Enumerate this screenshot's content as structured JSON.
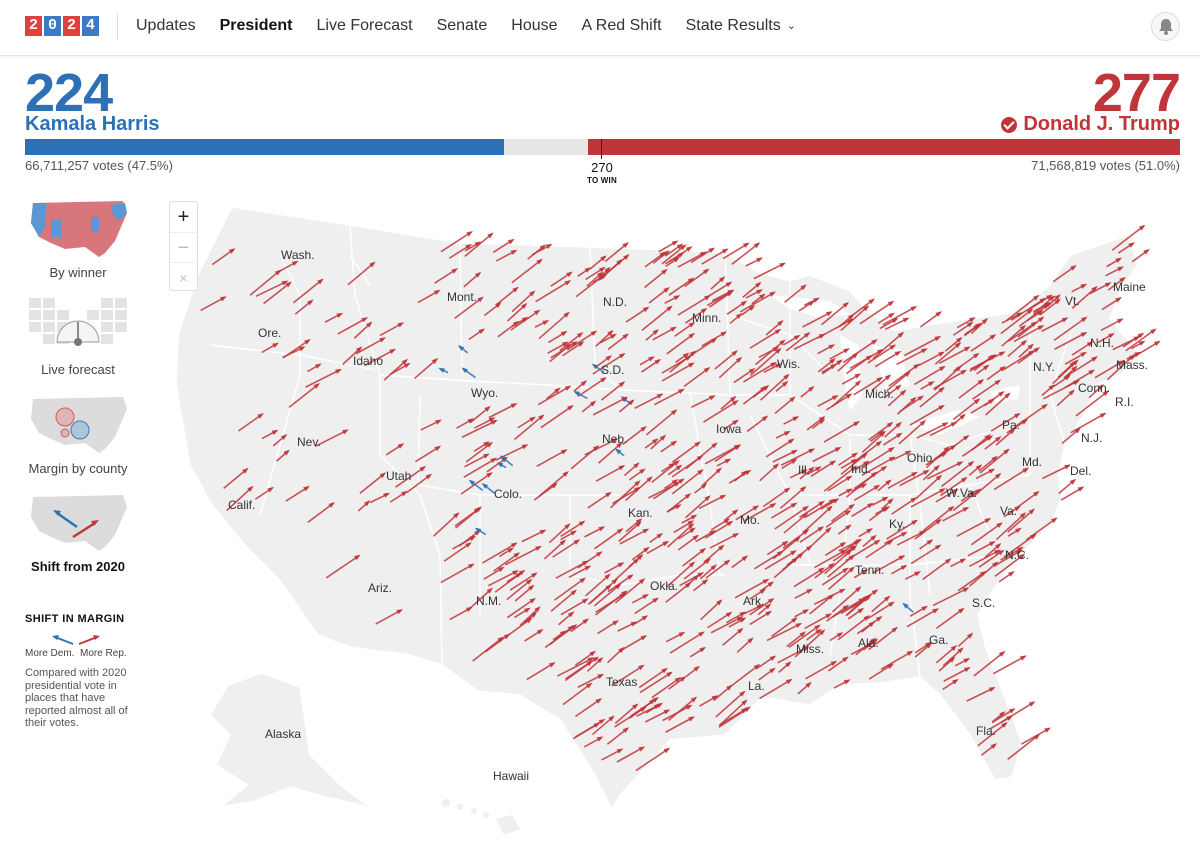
{
  "nav": {
    "logo_digits": [
      "2",
      "0",
      "2",
      "4"
    ],
    "links": [
      "Updates",
      "President",
      "Live Forecast",
      "Senate",
      "House",
      "A Red Shift",
      "State Results"
    ],
    "active": "President",
    "bell_icon": "bell-icon"
  },
  "colors": {
    "dem": "#2e70b6",
    "rep": "#c0353a",
    "land": "#efefef",
    "border": "#ffffff"
  },
  "results": {
    "dem": {
      "electoral_votes": "224",
      "name": "Kamala Harris",
      "votes": "66,711,257 votes (47.5%)",
      "ev_share": 0.415
    },
    "rep": {
      "electoral_votes": "277",
      "name": "Donald J. Trump",
      "votes": "71,568,819 votes (51.0%)",
      "ev_share": 0.513,
      "winner": true
    },
    "threshold": "270",
    "threshold_label": "TO WIN"
  },
  "map_options": [
    {
      "label": "By winner"
    },
    {
      "label": "Live forecast"
    },
    {
      "label": "Margin by county"
    },
    {
      "label": "Shift from 2020",
      "active": true
    }
  ],
  "legend": {
    "title": "SHIFT IN MARGIN",
    "dem_label": "More Dem.",
    "rep_label": "More Rep.",
    "note": "Compared with 2020 presidential vote in places that have reported almost all of their votes."
  },
  "zoom": {
    "in": "+",
    "out": "−",
    "reset": "×"
  },
  "state_labels": [
    "Wash.",
    "Mont.",
    "N.D.",
    "Minn.",
    "Vt.",
    "Maine",
    "Ore.",
    "Idaho",
    "S.D.",
    "Wis.",
    "N.H.",
    "N.Y.",
    "Mass.",
    "Wyo.",
    "Mich.",
    "Conn.",
    "R.I.",
    "Nev.",
    "Neb.",
    "Iowa",
    "Pa.",
    "N.J.",
    "Utah",
    "Ill.",
    "Ind.",
    "Ohio",
    "Md.",
    "Del.",
    "Colo.",
    "W.Va.",
    "Calif.",
    "Kan.",
    "Mo.",
    "Ky.",
    "Va.",
    "N.C.",
    "Tenn.",
    "Okla.",
    "Ariz.",
    "N.M.",
    "Ark.",
    "S.C.",
    "Miss.",
    "Ala.",
    "Ga.",
    "Texas",
    "La.",
    "Fla.",
    "Alaska",
    "Hawaii"
  ]
}
